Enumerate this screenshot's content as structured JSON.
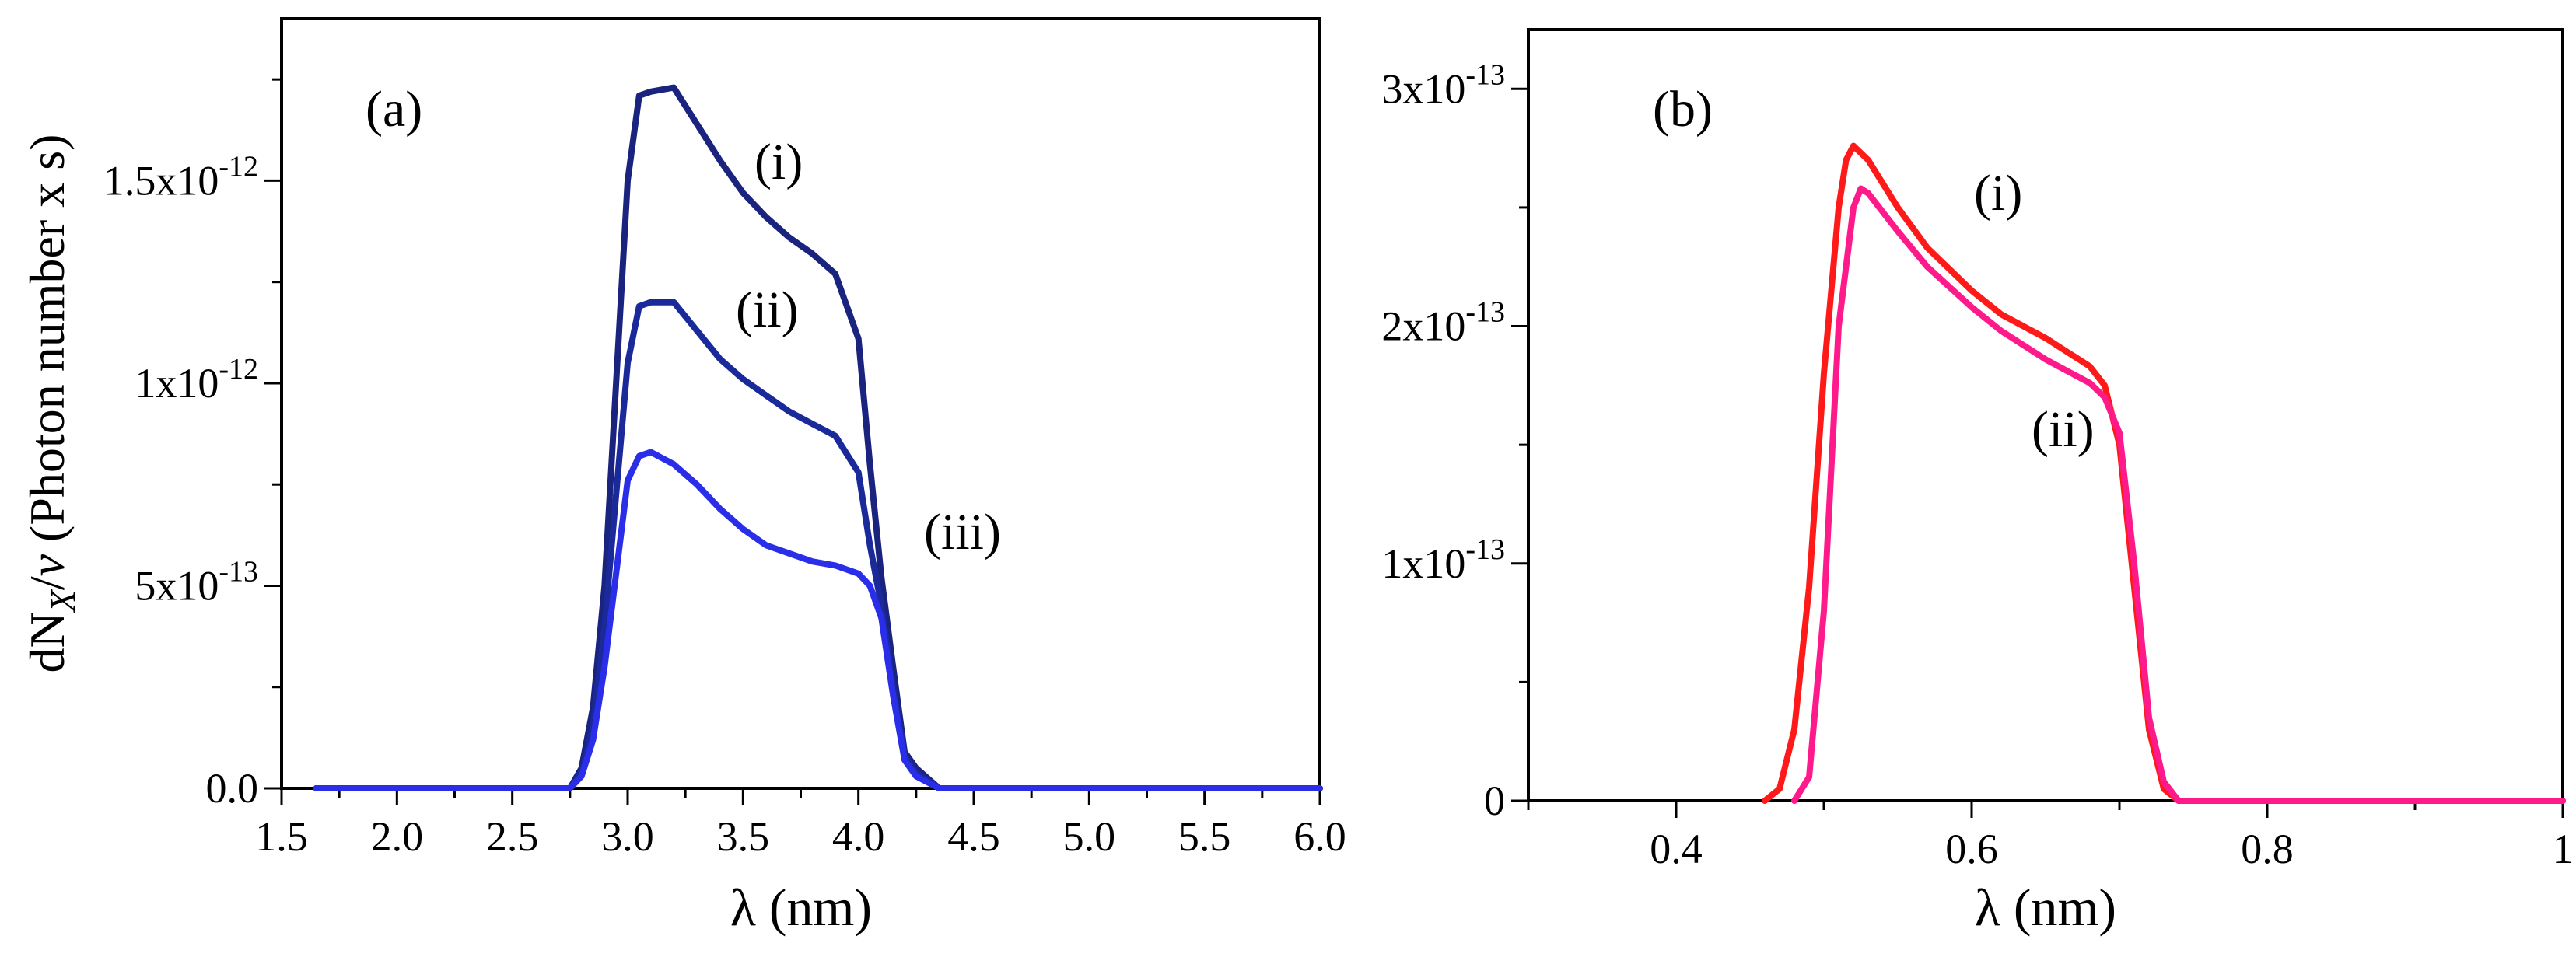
{
  "chart_data": [
    {
      "panel": "(a)",
      "type": "line",
      "xlabel": "λ (nm)",
      "ylabel": "dN_X/ν (Photon number x s)",
      "xlim": [
        1.5,
        6.0
      ],
      "ylim": [
        0,
        1.9e-12
      ],
      "xticks": [
        1.5,
        2.0,
        2.5,
        3.0,
        3.5,
        4.0,
        4.5,
        5.0,
        5.5,
        6.0
      ],
      "xtick_labels": [
        "1.5",
        "2.0",
        "2.5",
        "3.0",
        "3.5",
        "4.0",
        "4.5",
        "5.0",
        "5.5",
        "6.0"
      ],
      "yticks": [
        0,
        5e-13,
        1e-12,
        1.5e-12
      ],
      "ytick_labels": [
        {
          "mant": "0.0",
          "exp": ""
        },
        {
          "mant": "5x10",
          "exp": "-13"
        },
        {
          "mant": "1x10",
          "exp": "-12"
        },
        {
          "mant": "1.5x10",
          "exp": "-12"
        }
      ],
      "grid": false,
      "series": [
        {
          "name": "(i)",
          "color": "#1a237e",
          "x": [
            1.65,
            2.5,
            2.75,
            2.8,
            2.85,
            2.9,
            3.0,
            3.05,
            3.1,
            3.2,
            3.3,
            3.4,
            3.5,
            3.6,
            3.7,
            3.8,
            3.9,
            4.0,
            4.05,
            4.1,
            4.15,
            4.2,
            4.25,
            4.35,
            4.5,
            6.0
          ],
          "y": [
            0,
            0,
            0,
            5e-14,
            2e-13,
            5e-13,
            1.5e-12,
            1.71e-12,
            1.72e-12,
            1.73e-12,
            1.64e-12,
            1.55e-12,
            1.47e-12,
            1.41e-12,
            1.36e-12,
            1.32e-12,
            1.27e-12,
            1.11e-12,
            8e-13,
            5.2e-13,
            3e-13,
            9e-14,
            5e-14,
            0,
            0,
            0
          ]
        },
        {
          "name": "(ii)",
          "color": "#1b2a9a",
          "x": [
            1.65,
            2.5,
            2.75,
            2.8,
            2.85,
            2.9,
            3.0,
            3.05,
            3.1,
            3.2,
            3.3,
            3.4,
            3.5,
            3.6,
            3.7,
            3.8,
            3.9,
            4.0,
            4.05,
            4.1,
            4.15,
            4.2,
            4.25,
            4.35,
            4.5,
            6.0
          ],
          "y": [
            0,
            0,
            0,
            4e-14,
            1.5e-13,
            4e-13,
            1.05e-12,
            1.19e-12,
            1.2e-12,
            1.2e-12,
            1.13e-12,
            1.06e-12,
            1.01e-12,
            9.7e-13,
            9.3e-13,
            9e-13,
            8.7e-13,
            7.8e-13,
            6e-13,
            4.5e-13,
            2.5e-13,
            8e-14,
            4e-14,
            0,
            0,
            0
          ]
        },
        {
          "name": "(iii)",
          "color": "#2a2ee8",
          "x": [
            1.65,
            2.5,
            2.75,
            2.8,
            2.85,
            2.9,
            3.0,
            3.05,
            3.1,
            3.2,
            3.3,
            3.4,
            3.5,
            3.6,
            3.7,
            3.8,
            3.9,
            4.0,
            4.05,
            4.1,
            4.15,
            4.2,
            4.25,
            4.35,
            4.5,
            6.0
          ],
          "y": [
            0,
            0,
            0,
            3e-14,
            1.2e-13,
            3e-13,
            7.6e-13,
            8.2e-13,
            8.3e-13,
            8e-13,
            7.5e-13,
            6.9e-13,
            6.4e-13,
            6e-13,
            5.8e-13,
            5.6e-13,
            5.5e-13,
            5.3e-13,
            5e-13,
            4.2e-13,
            2.3e-13,
            7e-14,
            3e-14,
            0,
            0,
            0
          ]
        }
      ],
      "annotations": [
        "(a)",
        "(i)",
        "(ii)",
        "(iii)"
      ]
    },
    {
      "panel": "(b)",
      "type": "line",
      "xlabel": "λ (nm)",
      "ylabel": "",
      "xlim": [
        0.3,
        1.0
      ],
      "ylim": [
        0,
        3.25e-13
      ],
      "xticks": [
        0.4,
        0.6,
        0.8,
        1.0
      ],
      "xtick_labels": [
        "0.4",
        "0.6",
        "0.8",
        "1"
      ],
      "yticks": [
        0,
        1e-13,
        2e-13,
        3e-13
      ],
      "ytick_labels": [
        {
          "mant": "0",
          "exp": ""
        },
        {
          "mant": "1x10",
          "exp": "-13"
        },
        {
          "mant": "2x10",
          "exp": "-13"
        },
        {
          "mant": "3x10",
          "exp": "-13"
        }
      ],
      "grid": false,
      "series": [
        {
          "name": "(i)",
          "color": "#ff1a1a",
          "x": [
            0.46,
            0.47,
            0.48,
            0.49,
            0.5,
            0.51,
            0.515,
            0.52,
            0.53,
            0.55,
            0.57,
            0.6,
            0.62,
            0.65,
            0.68,
            0.69,
            0.7,
            0.71,
            0.72,
            0.73,
            0.74,
            0.76,
            0.8,
            1.0
          ],
          "y": [
            0,
            5e-15,
            3e-14,
            9e-14,
            1.8e-13,
            2.5e-13,
            2.7e-13,
            2.76e-13,
            2.7e-13,
            2.5e-13,
            2.33e-13,
            2.15e-13,
            2.05e-13,
            1.95e-13,
            1.83e-13,
            1.75e-13,
            1.5e-13,
            9e-14,
            3e-14,
            5e-15,
            0,
            0,
            0,
            0
          ]
        },
        {
          "name": "(ii)",
          "color": "#ff1a8c",
          "x": [
            0.48,
            0.49,
            0.5,
            0.51,
            0.52,
            0.525,
            0.53,
            0.55,
            0.57,
            0.6,
            0.62,
            0.65,
            0.68,
            0.69,
            0.7,
            0.71,
            0.72,
            0.73,
            0.74,
            0.76,
            0.8,
            1.0
          ],
          "y": [
            0,
            1e-14,
            8e-14,
            2e-13,
            2.5e-13,
            2.58e-13,
            2.56e-13,
            2.4e-13,
            2.25e-13,
            2.08e-13,
            1.98e-13,
            1.86e-13,
            1.76e-13,
            1.7e-13,
            1.55e-13,
            1e-13,
            3.5e-14,
            8e-15,
            0,
            0,
            0,
            0
          ]
        }
      ],
      "annotations": [
        "(b)",
        "(i)",
        "(ii)"
      ]
    }
  ]
}
